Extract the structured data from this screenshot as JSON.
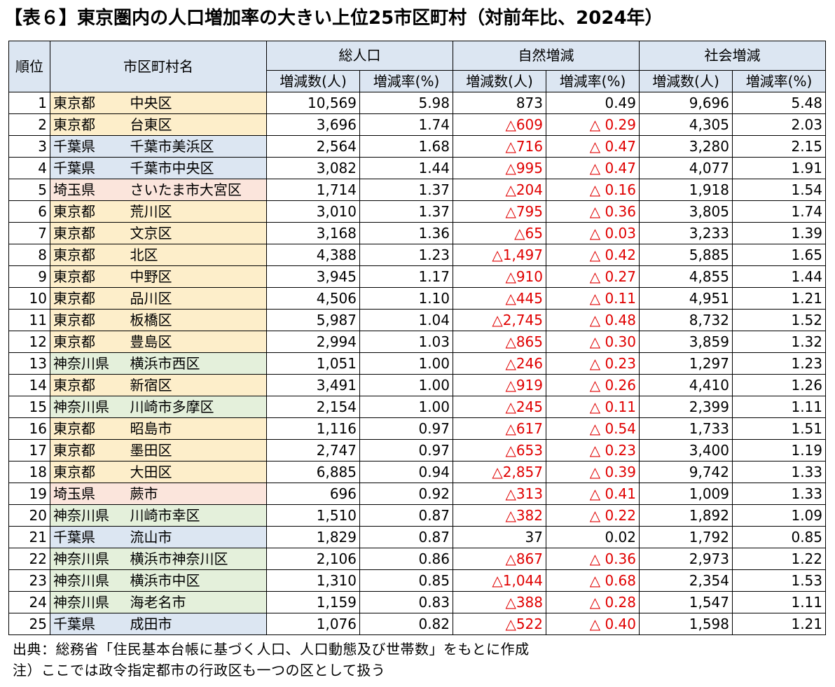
{
  "title": "【表６】東京圏内の人口増加率の大きい上位25市区町村（対前年比、2024年）",
  "headers": {
    "rank": "順位",
    "name": "市区町村名",
    "groups": [
      "総人口",
      "自然増減",
      "社会増減"
    ],
    "sub": [
      "増減数(人)",
      "増減率(%)",
      "増減数(人)",
      "増減率(%)",
      "増減数(人)",
      "増減率(%)"
    ]
  },
  "pref_colors": {
    "東京都": "#fdeeca",
    "千葉県": "#dce6f2",
    "埼玉県": "#fbe5dc",
    "神奈川県": "#e4f0db",
    "header": "#dce6f2",
    "negative_text": "#e00000"
  },
  "rows": [
    {
      "rank": "1",
      "pref": "東京都",
      "city": "中央区",
      "total_num": "10,569",
      "total_rate": "5.98",
      "nat_num": "873",
      "nat_rate": "0.49",
      "soc_num": "9,696",
      "soc_rate": "5.48"
    },
    {
      "rank": "2",
      "pref": "東京都",
      "city": "台東区",
      "total_num": "3,696",
      "total_rate": "1.74",
      "nat_num": "△609",
      "nat_rate": "△ 0.29",
      "soc_num": "4,305",
      "soc_rate": "2.03"
    },
    {
      "rank": "3",
      "pref": "千葉県",
      "city": "千葉市美浜区",
      "total_num": "2,564",
      "total_rate": "1.68",
      "nat_num": "△716",
      "nat_rate": "△ 0.47",
      "soc_num": "3,280",
      "soc_rate": "2.15"
    },
    {
      "rank": "4",
      "pref": "千葉県",
      "city": "千葉市中央区",
      "total_num": "3,082",
      "total_rate": "1.44",
      "nat_num": "△995",
      "nat_rate": "△ 0.47",
      "soc_num": "4,077",
      "soc_rate": "1.91"
    },
    {
      "rank": "5",
      "pref": "埼玉県",
      "city": "さいたま市大宮区",
      "total_num": "1,714",
      "total_rate": "1.37",
      "nat_num": "△204",
      "nat_rate": "△ 0.16",
      "soc_num": "1,918",
      "soc_rate": "1.54"
    },
    {
      "rank": "6",
      "pref": "東京都",
      "city": "荒川区",
      "total_num": "3,010",
      "total_rate": "1.37",
      "nat_num": "△795",
      "nat_rate": "△ 0.36",
      "soc_num": "3,805",
      "soc_rate": "1.74"
    },
    {
      "rank": "7",
      "pref": "東京都",
      "city": "文京区",
      "total_num": "3,168",
      "total_rate": "1.36",
      "nat_num": "△65",
      "nat_rate": "△ 0.03",
      "soc_num": "3,233",
      "soc_rate": "1.39"
    },
    {
      "rank": "8",
      "pref": "東京都",
      "city": "北区",
      "total_num": "4,388",
      "total_rate": "1.23",
      "nat_num": "△1,497",
      "nat_rate": "△ 0.42",
      "soc_num": "5,885",
      "soc_rate": "1.65"
    },
    {
      "rank": "9",
      "pref": "東京都",
      "city": "中野区",
      "total_num": "3,945",
      "total_rate": "1.17",
      "nat_num": "△910",
      "nat_rate": "△ 0.27",
      "soc_num": "4,855",
      "soc_rate": "1.44"
    },
    {
      "rank": "10",
      "pref": "東京都",
      "city": "品川区",
      "total_num": "4,506",
      "total_rate": "1.10",
      "nat_num": "△445",
      "nat_rate": "△ 0.11",
      "soc_num": "4,951",
      "soc_rate": "1.21"
    },
    {
      "rank": "11",
      "pref": "東京都",
      "city": "板橋区",
      "total_num": "5,987",
      "total_rate": "1.04",
      "nat_num": "△2,745",
      "nat_rate": "△ 0.48",
      "soc_num": "8,732",
      "soc_rate": "1.52"
    },
    {
      "rank": "12",
      "pref": "東京都",
      "city": "豊島区",
      "total_num": "2,994",
      "total_rate": "1.03",
      "nat_num": "△865",
      "nat_rate": "△ 0.30",
      "soc_num": "3,859",
      "soc_rate": "1.32"
    },
    {
      "rank": "13",
      "pref": "神奈川県",
      "city": "横浜市西区",
      "total_num": "1,051",
      "total_rate": "1.00",
      "nat_num": "△246",
      "nat_rate": "△ 0.23",
      "soc_num": "1,297",
      "soc_rate": "1.23"
    },
    {
      "rank": "14",
      "pref": "東京都",
      "city": "新宿区",
      "total_num": "3,491",
      "total_rate": "1.00",
      "nat_num": "△919",
      "nat_rate": "△ 0.26",
      "soc_num": "4,410",
      "soc_rate": "1.26"
    },
    {
      "rank": "15",
      "pref": "神奈川県",
      "city": "川崎市多摩区",
      "total_num": "2,154",
      "total_rate": "1.00",
      "nat_num": "△245",
      "nat_rate": "△ 0.11",
      "soc_num": "2,399",
      "soc_rate": "1.11"
    },
    {
      "rank": "16",
      "pref": "東京都",
      "city": "昭島市",
      "total_num": "1,116",
      "total_rate": "0.97",
      "nat_num": "△617",
      "nat_rate": "△ 0.54",
      "soc_num": "1,733",
      "soc_rate": "1.51"
    },
    {
      "rank": "17",
      "pref": "東京都",
      "city": "墨田区",
      "total_num": "2,747",
      "total_rate": "0.97",
      "nat_num": "△653",
      "nat_rate": "△ 0.23",
      "soc_num": "3,400",
      "soc_rate": "1.19"
    },
    {
      "rank": "18",
      "pref": "東京都",
      "city": "大田区",
      "total_num": "6,885",
      "total_rate": "0.94",
      "nat_num": "△2,857",
      "nat_rate": "△ 0.39",
      "soc_num": "9,742",
      "soc_rate": "1.33"
    },
    {
      "rank": "19",
      "pref": "埼玉県",
      "city": "蕨市",
      "total_num": "696",
      "total_rate": "0.92",
      "nat_num": "△313",
      "nat_rate": "△ 0.41",
      "soc_num": "1,009",
      "soc_rate": "1.33"
    },
    {
      "rank": "20",
      "pref": "神奈川県",
      "city": "川崎市幸区",
      "total_num": "1,510",
      "total_rate": "0.87",
      "nat_num": "△382",
      "nat_rate": "△ 0.22",
      "soc_num": "1,892",
      "soc_rate": "1.09"
    },
    {
      "rank": "21",
      "pref": "千葉県",
      "city": "流山市",
      "total_num": "1,829",
      "total_rate": "0.87",
      "nat_num": "37",
      "nat_rate": "0.02",
      "soc_num": "1,792",
      "soc_rate": "0.85"
    },
    {
      "rank": "22",
      "pref": "神奈川県",
      "city": "横浜市神奈川区",
      "total_num": "2,106",
      "total_rate": "0.86",
      "nat_num": "△867",
      "nat_rate": "△ 0.36",
      "soc_num": "2,973",
      "soc_rate": "1.22"
    },
    {
      "rank": "23",
      "pref": "神奈川県",
      "city": "横浜市中区",
      "total_num": "1,310",
      "total_rate": "0.85",
      "nat_num": "△1,044",
      "nat_rate": "△ 0.68",
      "soc_num": "2,354",
      "soc_rate": "1.53"
    },
    {
      "rank": "24",
      "pref": "神奈川県",
      "city": "海老名市",
      "total_num": "1,159",
      "total_rate": "0.83",
      "nat_num": "△388",
      "nat_rate": "△ 0.28",
      "soc_num": "1,547",
      "soc_rate": "1.11"
    },
    {
      "rank": "25",
      "pref": "千葉県",
      "city": "成田市",
      "total_num": "1,076",
      "total_rate": "0.82",
      "nat_num": "△522",
      "nat_rate": "△ 0.40",
      "soc_num": "1,598",
      "soc_rate": "1.21"
    }
  ],
  "notes": [
    "出典：総務省「住民基本台帳に基づく人口、人口動態及び世帯数」をもとに作成",
    "注）ここでは政令指定都市の行政区も一つの区として扱う"
  ]
}
